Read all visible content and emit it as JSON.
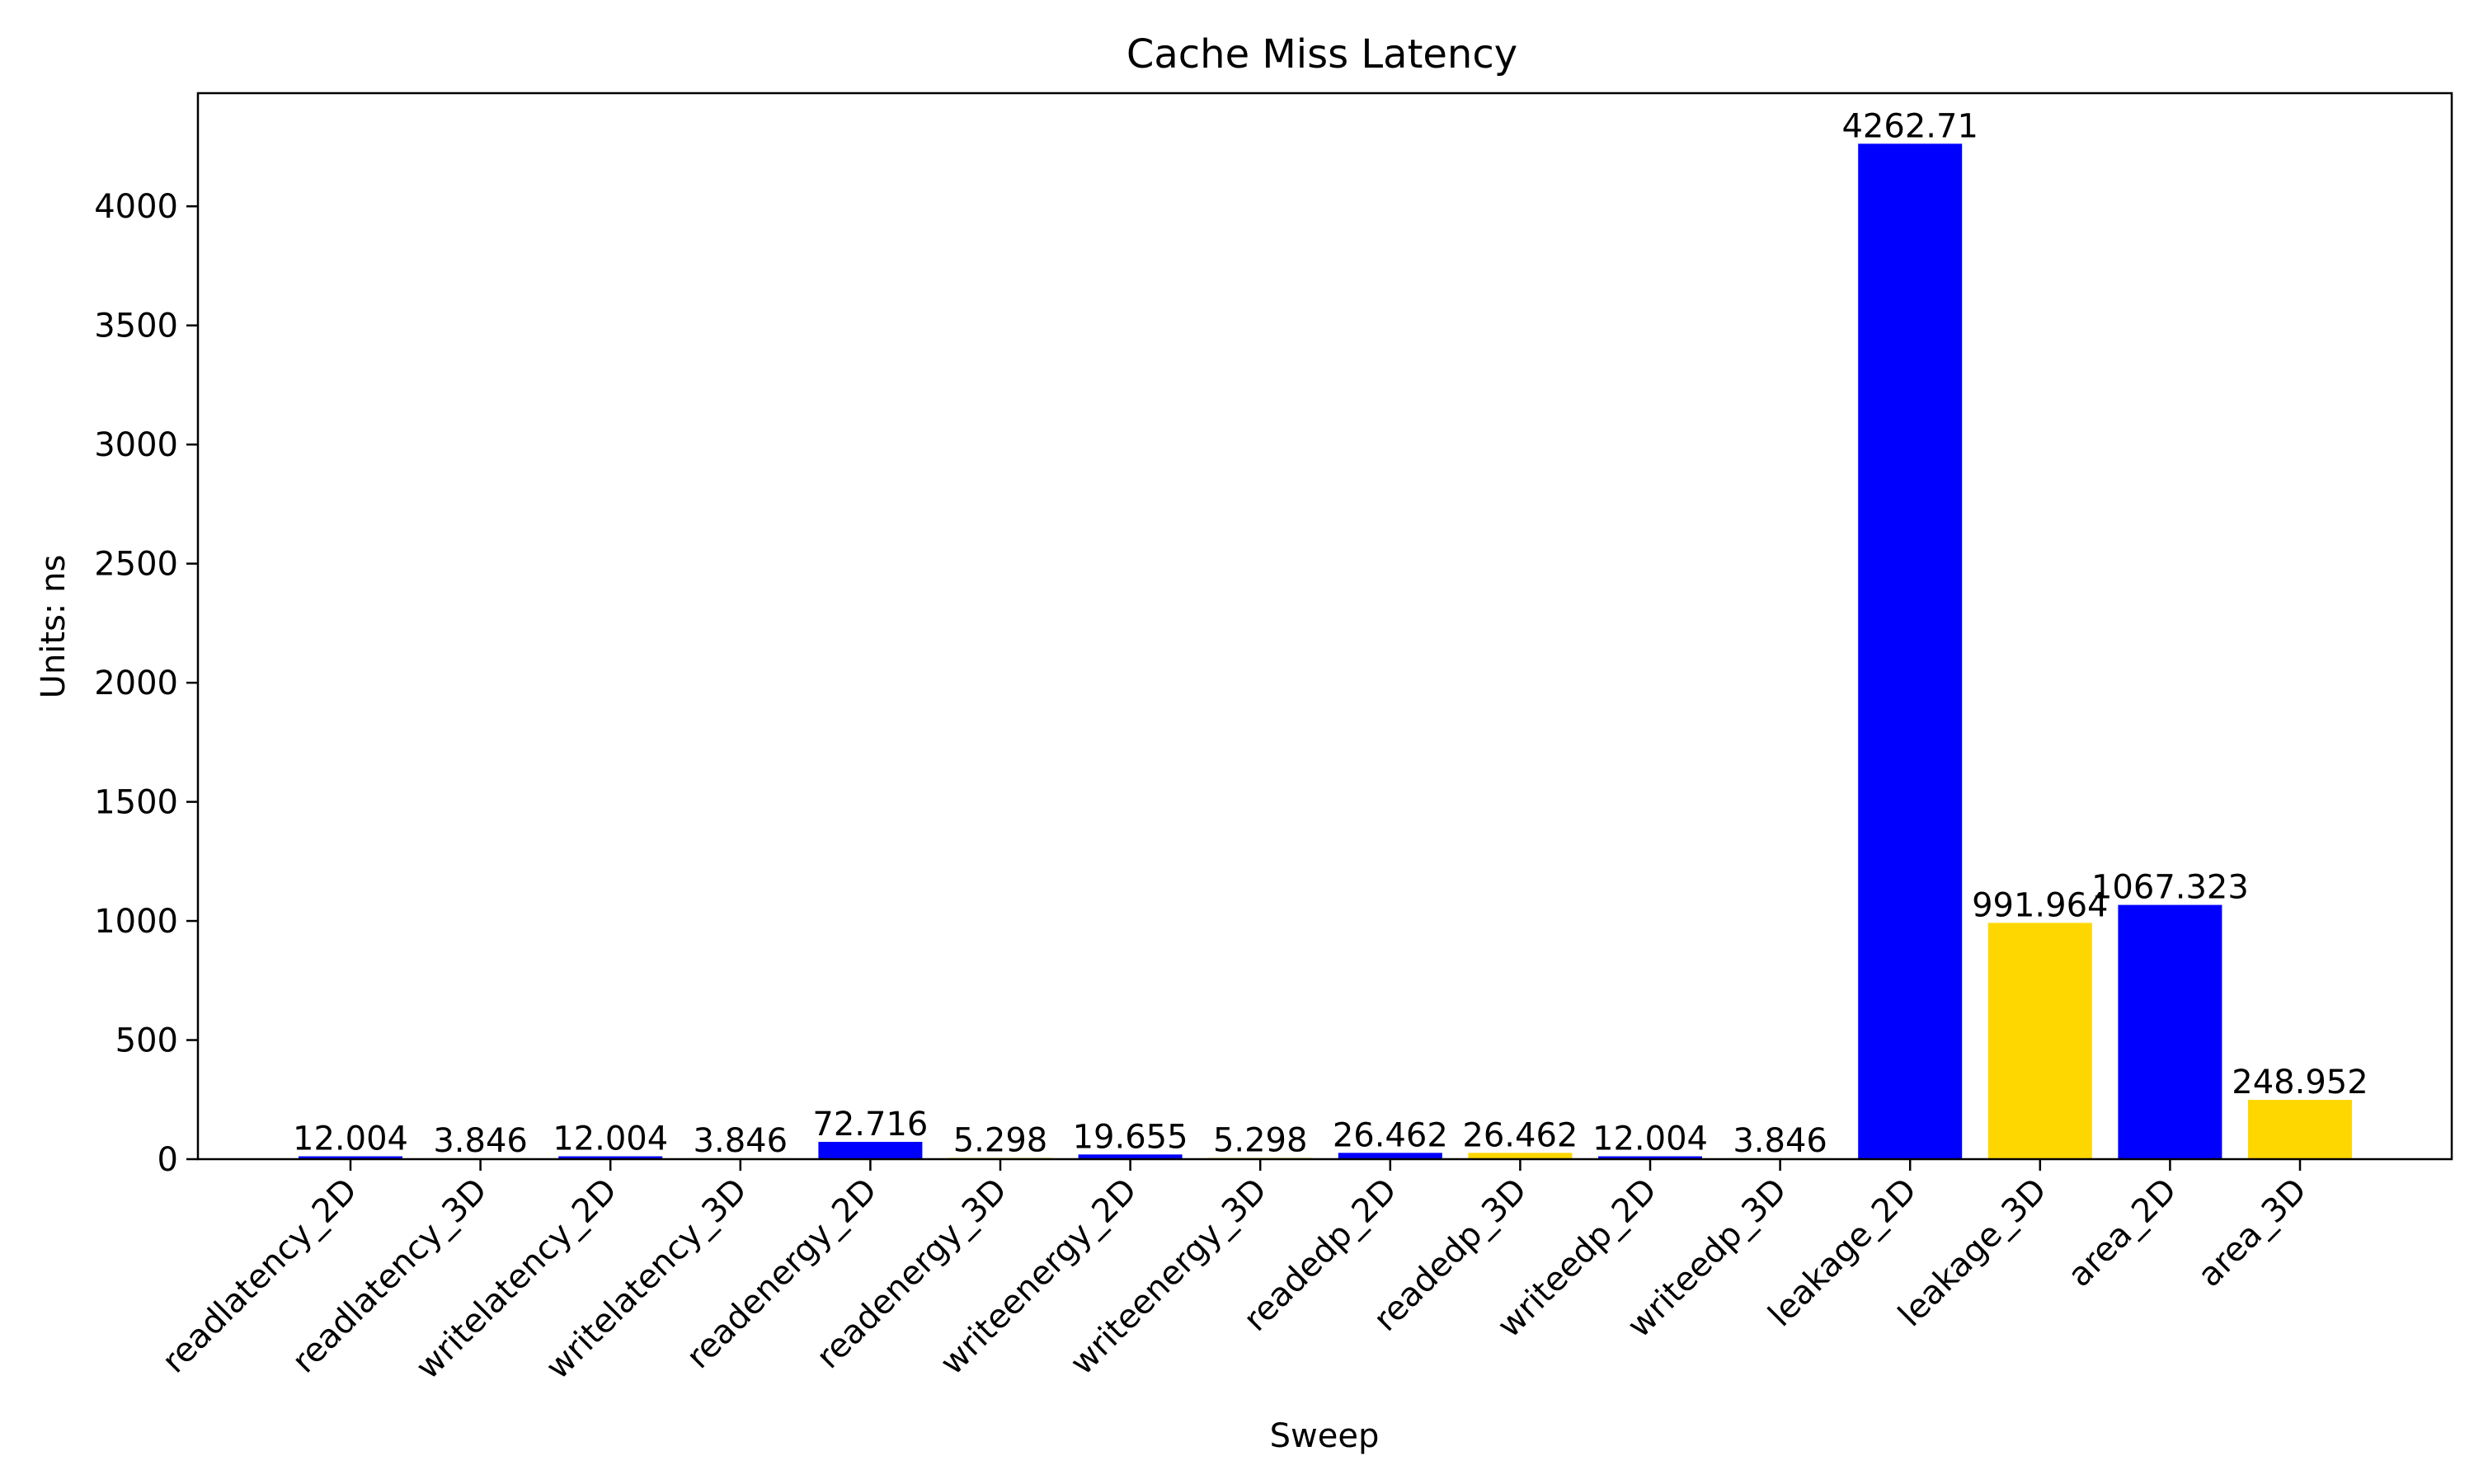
{
  "chart_data": {
    "type": "bar",
    "title": "Cache Miss Latency",
    "xlabel": "Sweep",
    "ylabel": "Units: ns",
    "ylim": [
      0,
      4475
    ],
    "yticks": [
      0,
      500,
      1000,
      1500,
      2000,
      2500,
      3000,
      3500,
      4000
    ],
    "grid": false,
    "legend": "none",
    "categories": [
      "readlatency_2D",
      "readlatency_3D",
      "writelatency_2D",
      "writelatency_3D",
      "readenergy_2D",
      "readenergy_3D",
      "writeenergy_2D",
      "writeenergy_3D",
      "readedp_2D",
      "readedp_3D",
      "writeedp_2D",
      "writeedp_3D",
      "leakage_2D",
      "leakage_3D",
      "area_2D",
      "area_3D"
    ],
    "values": [
      12.004,
      3.846,
      12.004,
      3.846,
      72.716,
      5.298,
      19.655,
      5.298,
      26.462,
      26.462,
      12.004,
      3.846,
      4262.71,
      991.964,
      1067.323,
      248.952
    ],
    "value_labels": [
      "12.004",
      "3.846",
      "12.004",
      "3.846",
      "72.716",
      "5.298",
      "19.655",
      "5.298",
      "26.462",
      "26.462",
      "12.004",
      "3.846",
      "4262.71",
      "991.964",
      "1067.323",
      "248.952"
    ],
    "bar_colors": [
      "#0000ff",
      "#ffd700",
      "#0000ff",
      "#ffd700",
      "#0000ff",
      "#ffd700",
      "#0000ff",
      "#ffd700",
      "#0000ff",
      "#ffd700",
      "#0000ff",
      "#ffd700",
      "#0000ff",
      "#ffd700",
      "#0000ff",
      "#ffd700"
    ]
  }
}
